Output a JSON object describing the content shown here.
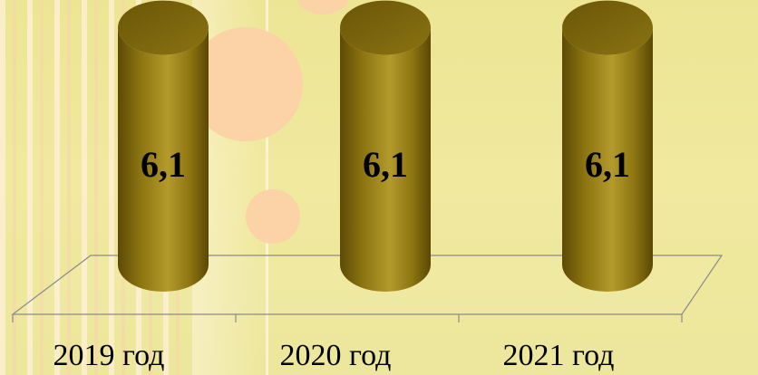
{
  "chart_data": {
    "type": "bar",
    "style": "3d-cylinder",
    "categories": [
      "2019 год",
      "2020 год",
      "2021 год"
    ],
    "values": [
      6.1,
      6.1,
      6.1
    ],
    "data_labels": [
      "6,1",
      "6,1",
      "6,1"
    ],
    "title": "",
    "xlabel": "",
    "ylabel": "",
    "grid": false,
    "legend": "none",
    "colors": {
      "bar": "#8c7410",
      "bar_dark": "#5c4a06",
      "bar_light": "#b39a2c",
      "floor_line": "#8a8a8a",
      "background": "#efe89c",
      "bubble": "#fbd3a6"
    }
  }
}
